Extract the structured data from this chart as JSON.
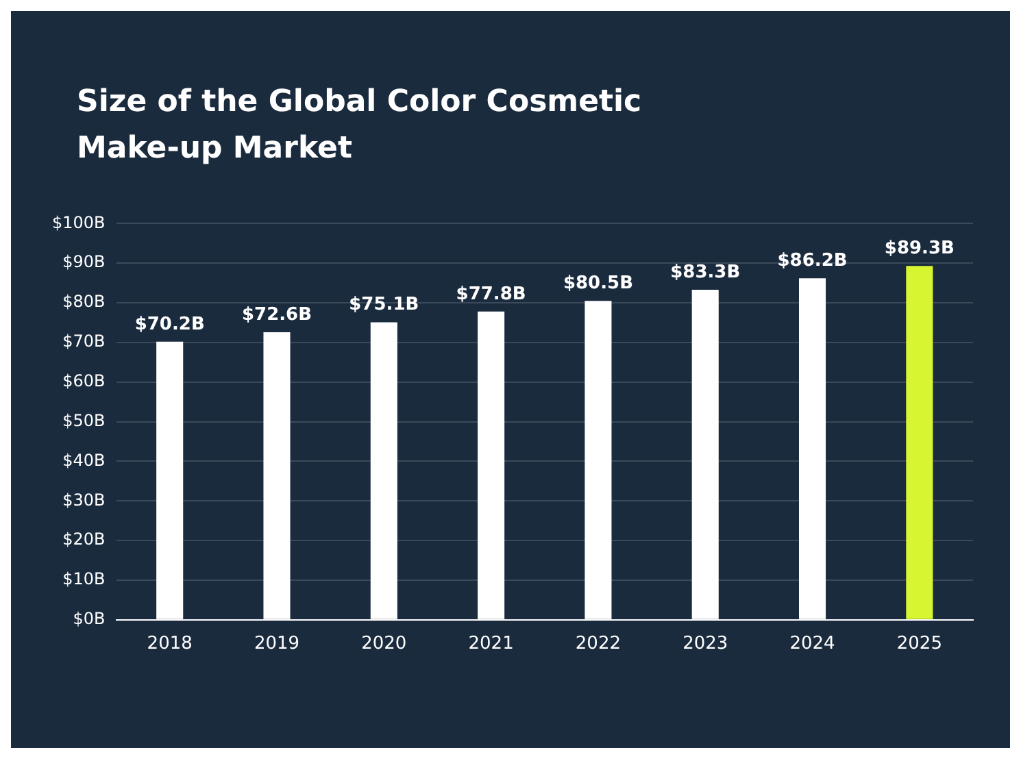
{
  "chart_data": {
    "type": "bar",
    "title": "Size of the Global Color Cosmetic Make-up Market",
    "categories": [
      "2018",
      "2019",
      "2020",
      "2021",
      "2022",
      "2023",
      "2024",
      "2025"
    ],
    "values": [
      70.2,
      72.6,
      75.1,
      77.8,
      80.5,
      83.3,
      86.2,
      89.3
    ],
    "colors": [
      "#ffffff",
      "#ffffff",
      "#ffffff",
      "#ffffff",
      "#ffffff",
      "#ffffff",
      "#ffffff",
      "#d7f631"
    ],
    "value_labels": [
      "$70.2B",
      "$72.6B",
      "$75.1B",
      "$77.8B",
      "$80.5B",
      "$83.3B",
      "$86.2B",
      "$89.3B"
    ],
    "ylim": [
      0,
      100
    ],
    "yticks": [
      {
        "value": 0,
        "label": "$0B"
      },
      {
        "value": 10,
        "label": "$10B"
      },
      {
        "value": 20,
        "label": "$20B"
      },
      {
        "value": 30,
        "label": "$30B"
      },
      {
        "value": 40,
        "label": "$40B"
      },
      {
        "value": 50,
        "label": "$50B"
      },
      {
        "value": 60,
        "label": "$60B"
      },
      {
        "value": 70,
        "label": "$70B"
      },
      {
        "value": 80,
        "label": "$80B"
      },
      {
        "value": 90,
        "label": "$90B"
      },
      {
        "value": 100,
        "label": "$100B"
      }
    ],
    "grid": "y",
    "legend": false
  }
}
